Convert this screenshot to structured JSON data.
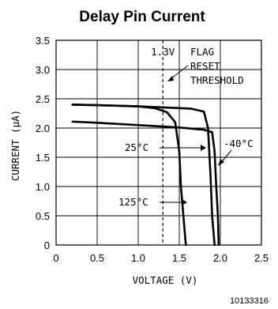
{
  "chart_data": {
    "type": "line",
    "title": "Delay Pin Current",
    "xlabel": "VOLTAGE (V)",
    "ylabel": "CURRENT (μA)",
    "xlim": [
      0,
      2.5
    ],
    "ylim": [
      0,
      3.5
    ],
    "x_ticks": [
      "0",
      "0.5",
      "1.0",
      "1.5",
      "2.0",
      "2.5"
    ],
    "y_ticks": [
      "0",
      "0.5",
      "1.0",
      "1.5",
      "2.0",
      "2.5",
      "3.0",
      "3.5"
    ],
    "grid": true,
    "series": [
      {
        "name": "-40°C",
        "points": [
          [
            0.2,
            2.4
          ],
          [
            0.5,
            2.39
          ],
          [
            1.0,
            2.37
          ],
          [
            1.5,
            2.34
          ],
          [
            1.65,
            2.33
          ],
          [
            1.8,
            2.28
          ],
          [
            1.85,
            2.0
          ],
          [
            1.88,
            1.2
          ],
          [
            1.9,
            0.5
          ],
          [
            1.93,
            0
          ]
        ]
      },
      {
        "name": "25°C",
        "points": [
          [
            0.2,
            2.4
          ],
          [
            0.5,
            2.39
          ],
          [
            1.0,
            2.37
          ],
          [
            1.2,
            2.34
          ],
          [
            1.35,
            2.27
          ],
          [
            1.45,
            2.1
          ],
          [
            1.5,
            1.6
          ],
          [
            1.52,
            1.0
          ],
          [
            1.55,
            0.5
          ],
          [
            1.58,
            0
          ]
        ]
      },
      {
        "name": "125°C",
        "points": [
          [
            0.2,
            2.11
          ],
          [
            0.5,
            2.09
          ],
          [
            1.0,
            2.05
          ],
          [
            1.5,
            2.01
          ],
          [
            1.8,
            1.97
          ],
          [
            1.9,
            1.93
          ],
          [
            1.93,
            1.6
          ],
          [
            1.95,
            1.0
          ],
          [
            1.97,
            0.5
          ],
          [
            1.98,
            0
          ]
        ]
      }
    ],
    "reference_line": {
      "x": 1.3,
      "label": "1.3V",
      "style": "dashed"
    },
    "annotations": {
      "flag_text": [
        "FLAG",
        "RESET",
        "THRESHOLD"
      ],
      "series_labels": [
        "-40°C",
        "25°C",
        "125°C"
      ]
    },
    "figure_code": "10133316"
  }
}
